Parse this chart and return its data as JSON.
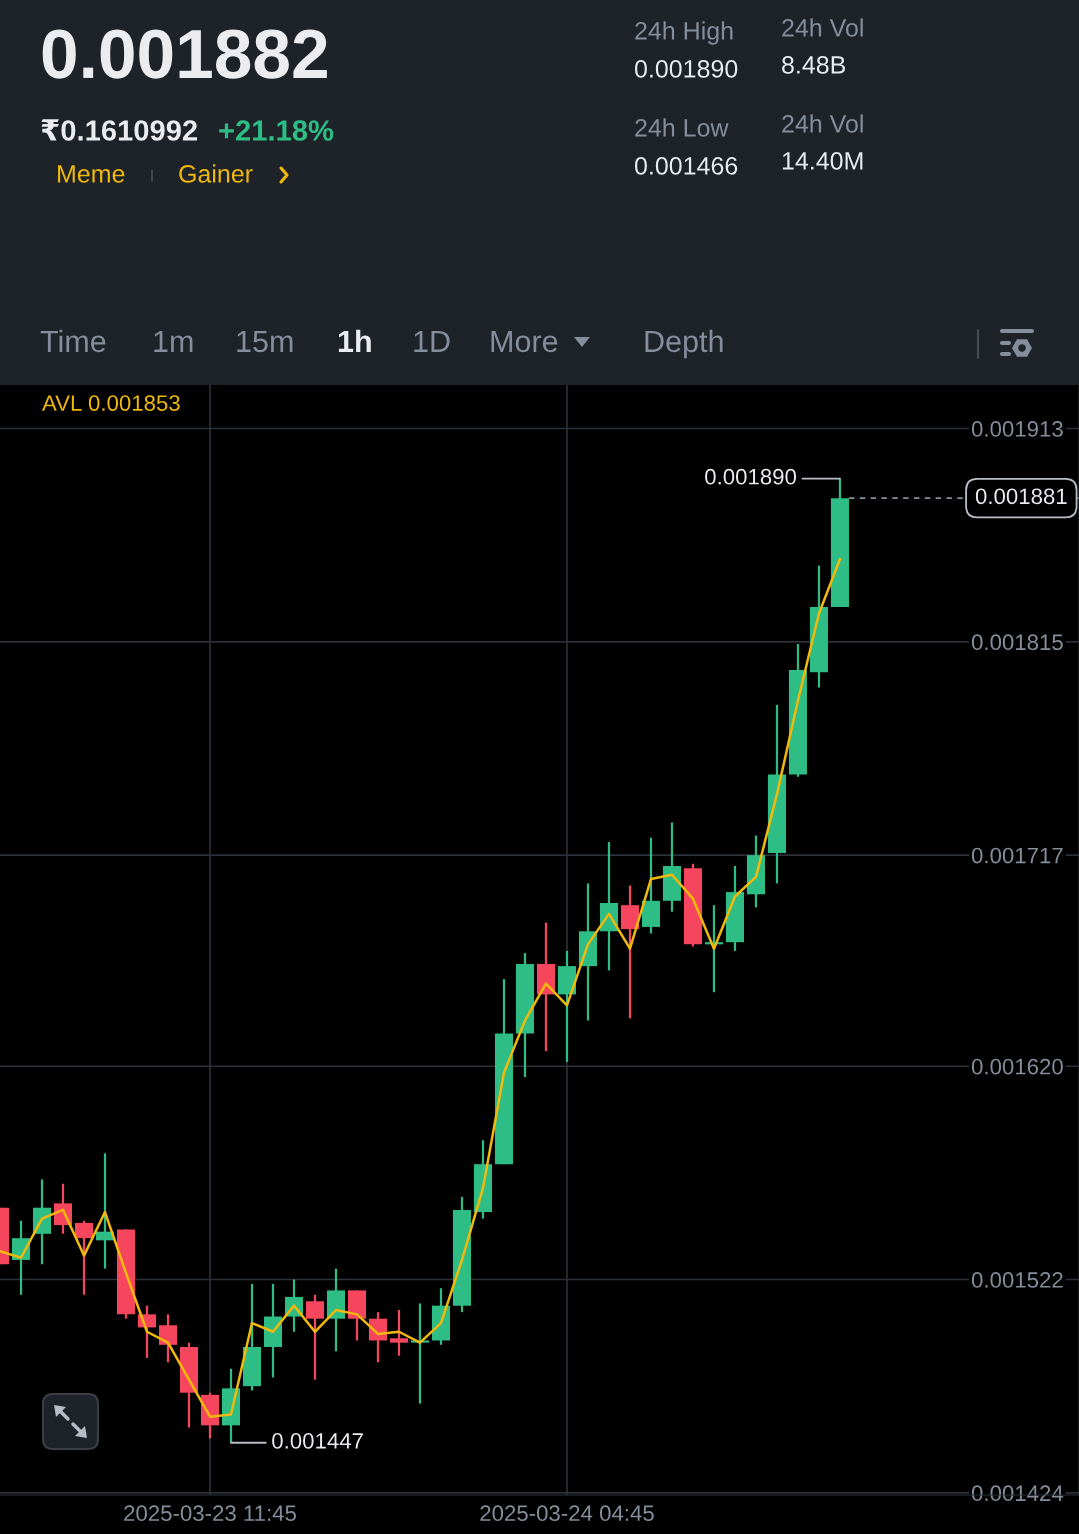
{
  "chart_data": {
    "type": "candlestick",
    "title": "0.001882",
    "x": [
      "2025-03-23T01:45",
      "2025-03-23T02:45",
      "2025-03-23T03:45",
      "2025-03-23T04:45",
      "2025-03-23T05:45",
      "2025-03-23T06:45",
      "2025-03-23T07:45",
      "2025-03-23T08:45",
      "2025-03-23T09:45",
      "2025-03-23T10:45",
      "2025-03-23T11:45",
      "2025-03-23T12:45",
      "2025-03-23T13:45",
      "2025-03-23T14:45",
      "2025-03-23T15:45",
      "2025-03-23T16:45",
      "2025-03-23T17:45",
      "2025-03-23T18:45",
      "2025-03-23T19:45",
      "2025-03-23T20:45",
      "2025-03-23T21:45",
      "2025-03-23T22:45",
      "2025-03-23T23:45",
      "2025-03-24T00:45",
      "2025-03-24T01:45",
      "2025-03-24T02:45",
      "2025-03-24T03:45",
      "2025-03-24T04:45",
      "2025-03-24T05:45",
      "2025-03-24T06:45",
      "2025-03-24T07:45",
      "2025-03-24T08:45",
      "2025-03-24T09:45",
      "2025-03-24T10:45",
      "2025-03-24T11:45",
      "2025-03-24T12:45",
      "2025-03-24T13:45",
      "2025-03-24T14:45",
      "2025-03-24T15:45",
      "2025-03-24T16:45",
      "2025-03-24T17:45"
    ],
    "ohlc": [
      [
        0.001555,
        0.001555,
        0.001529,
        0.001529
      ],
      [
        0.001531,
        0.001549,
        0.001515,
        0.001541
      ],
      [
        0.001543,
        0.001568,
        0.001529,
        0.001555
      ],
      [
        0.001557,
        0.001566,
        0.001543,
        0.001547
      ],
      [
        0.001548,
        0.001549,
        0.001515,
        0.001541
      ],
      [
        0.00154,
        0.00158,
        0.001527,
        0.001544
      ],
      [
        0.001545,
        0.001545,
        0.001504,
        0.001506
      ],
      [
        0.001506,
        0.00151,
        0.001486,
        0.0015
      ],
      [
        0.001501,
        0.001506,
        0.001484,
        0.001492
      ],
      [
        0.001491,
        0.001493,
        0.001454,
        0.00147
      ],
      [
        0.001469,
        0.00147,
        0.001449,
        0.001455
      ],
      [
        0.001455,
        0.001481,
        0.001447,
        0.001472
      ],
      [
        0.001473,
        0.00152,
        0.001471,
        0.001491
      ],
      [
        0.001491,
        0.00152,
        0.001477,
        0.001505
      ],
      [
        0.001505,
        0.001522,
        0.001498,
        0.001514
      ],
      [
        0.001512,
        0.001515,
        0.001476,
        0.001504
      ],
      [
        0.001504,
        0.001527,
        0.001489,
        0.001517
      ],
      [
        0.001517,
        0.001517,
        0.001494,
        0.001504
      ],
      [
        0.001504,
        0.001507,
        0.001484,
        0.001494
      ],
      [
        0.001495,
        0.001508,
        0.001487,
        0.001493
      ],
      [
        0.001493,
        0.001511,
        0.001465,
        0.001494
      ],
      [
        0.001494,
        0.001518,
        0.001492,
        0.00151
      ],
      [
        0.00151,
        0.00156,
        0.001507,
        0.001554
      ],
      [
        0.001553,
        0.001586,
        0.00155,
        0.001575
      ],
      [
        0.001575,
        0.00166,
        0.001575,
        0.001635
      ],
      [
        0.001635,
        0.001672,
        0.001615,
        0.001667
      ],
      [
        0.001667,
        0.001686,
        0.001627,
        0.001653
      ],
      [
        0.001653,
        0.001673,
        0.001622,
        0.001666
      ],
      [
        0.001666,
        0.001704,
        0.001641,
        0.001682
      ],
      [
        0.001682,
        0.001723,
        0.001664,
        0.001695
      ],
      [
        0.001694,
        0.001703,
        0.001642,
        0.001683
      ],
      [
        0.001684,
        0.001725,
        0.001681,
        0.001696
      ],
      [
        0.001696,
        0.001732,
        0.001691,
        0.001712
      ],
      [
        0.001711,
        0.001713,
        0.001675,
        0.001676
      ],
      [
        0.001676,
        0.001694,
        0.001654,
        0.001677
      ],
      [
        0.001677,
        0.001712,
        0.001673,
        0.0017
      ],
      [
        0.001699,
        0.001726,
        0.001693,
        0.001717
      ],
      [
        0.001718,
        0.001786,
        0.001704,
        0.001754
      ],
      [
        0.001754,
        0.001814,
        0.001753,
        0.001802
      ],
      [
        0.001801,
        0.00185,
        0.001794,
        0.001831
      ],
      [
        0.001831,
        0.00189,
        0.001831,
        0.001881
      ]
    ],
    "colors": [
      "#f6465d",
      "#2ebd85",
      "#2ebd85",
      "#f6465d",
      "#f6465d",
      "#2ebd85",
      "#f6465d",
      "#f6465d",
      "#f6465d",
      "#f6465d",
      "#f6465d",
      "#2ebd85",
      "#2ebd85",
      "#2ebd85",
      "#2ebd85",
      "#f6465d",
      "#2ebd85",
      "#f6465d",
      "#f6465d",
      "#f6465d",
      "#2ebd85",
      "#2ebd85",
      "#2ebd85",
      "#2ebd85",
      "#2ebd85",
      "#2ebd85",
      "#f6465d",
      "#2ebd85",
      "#2ebd85",
      "#2ebd85",
      "#f6465d",
      "#2ebd85",
      "#2ebd85",
      "#f6465d",
      "#2ebd85",
      "#2ebd85",
      "#2ebd85",
      "#2ebd85",
      "#2ebd85",
      "#2ebd85",
      "#2ebd85"
    ],
    "series": [
      {
        "type": "line",
        "name": "AVL",
        "color": "#f0b90b",
        "values": [
          0.001535,
          0.001532,
          0.00155,
          0.001554,
          0.001533,
          0.001553,
          0.001525,
          0.001498,
          0.001493,
          0.001476,
          0.001459,
          0.00146,
          0.001502,
          0.001498,
          0.00151,
          0.001498,
          0.001508,
          0.001506,
          0.001497,
          0.001498,
          0.001493,
          0.001502,
          0.001531,
          0.001564,
          0.001617,
          0.001641,
          0.001658,
          0.001648,
          0.001676,
          0.00169,
          0.001674,
          0.001706,
          0.001708,
          0.001697,
          0.001674,
          0.001698,
          0.001707,
          0.001745,
          0.001788,
          0.001828,
          0.001853
        ]
      }
    ],
    "xlim": [
      "2025-03-23T01:45",
      "2025-03-25T05:08"
    ],
    "xticks": [
      {
        "value": "2025-03-23T11:45",
        "label": "2025-03-23 11:45"
      },
      {
        "value": "2025-03-24T04:45",
        "label": "2025-03-24 04:45"
      }
    ],
    "ylim": [
      0.001423,
      0.001933
    ],
    "yticks": [
      0.001424,
      0.001522,
      {
        "value": 0.00162,
        "label": "0.001620"
      },
      0.001717,
      0.001815,
      0.001913
    ],
    "grid": true,
    "ref_lines": [
      {
        "axis": "y",
        "value": 0.001881,
        "label": "0.001881",
        "color": "#848e9c",
        "line_style": "dashed"
      }
    ],
    "annotations": [
      "₹0.1610992",
      "+21.18%",
      "Meme",
      "Gainer",
      "24h High",
      "0.001890",
      "24h Vol",
      "8.48B",
      "24h Low",
      "0.001466",
      "24h Vol",
      "14.40M",
      "Time",
      "1m",
      "15m",
      "1h",
      "1D",
      "More",
      "Depth",
      "0.001853",
      {
        "text": "0.001890",
        "x": "2025-03-24T17:45",
        "y": 0.00189
      },
      {
        "text": "0.001447",
        "x": "2025-03-23T12:45",
        "y": 0.001447
      }
    ]
  }
}
